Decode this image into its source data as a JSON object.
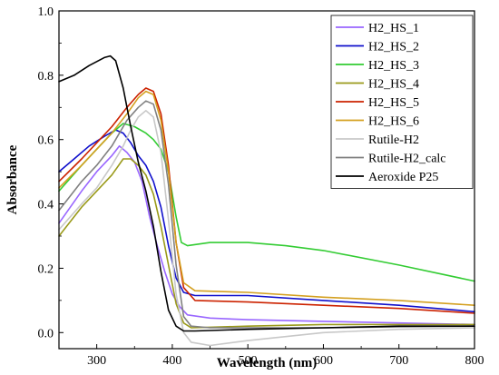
{
  "chart_data": {
    "type": "line",
    "title": "",
    "xlabel": "Wavelength (nm)",
    "ylabel": "Absorbance",
    "xlim": [
      250,
      800
    ],
    "ylim": [
      -0.05,
      1.0
    ],
    "xticks": [
      300,
      400,
      500,
      600,
      700,
      800
    ],
    "yticks": [
      0.0,
      0.2,
      0.4,
      0.6,
      0.8,
      1.0
    ],
    "xtick_labels": [
      "300",
      "400",
      "500",
      "600",
      "700",
      "800"
    ],
    "ytick_labels": [
      "0.0",
      "0.2",
      "0.4",
      "0.6",
      "0.8",
      "1.0"
    ],
    "grid": false,
    "legend_position": "top-right",
    "series": [
      {
        "name": "H2_HS_1",
        "color": "#9966ff",
        "points": [
          [
            250,
            0.34
          ],
          [
            280,
            0.44
          ],
          [
            300,
            0.5
          ],
          [
            320,
            0.55
          ],
          [
            330,
            0.58
          ],
          [
            340,
            0.56
          ],
          [
            350,
            0.53
          ],
          [
            360,
            0.47
          ],
          [
            370,
            0.36
          ],
          [
            380,
            0.27
          ],
          [
            390,
            0.19
          ],
          [
            400,
            0.12
          ],
          [
            410,
            0.08
          ],
          [
            420,
            0.055
          ],
          [
            450,
            0.045
          ],
          [
            500,
            0.04
          ],
          [
            600,
            0.035
          ],
          [
            700,
            0.03
          ],
          [
            800,
            0.025
          ]
        ]
      },
      {
        "name": "H2_HS_2",
        "color": "#1010cc",
        "points": [
          [
            250,
            0.5
          ],
          [
            270,
            0.54
          ],
          [
            290,
            0.58
          ],
          [
            310,
            0.61
          ],
          [
            325,
            0.63
          ],
          [
            335,
            0.62
          ],
          [
            345,
            0.59
          ],
          [
            355,
            0.55
          ],
          [
            365,
            0.52
          ],
          [
            375,
            0.47
          ],
          [
            385,
            0.39
          ],
          [
            395,
            0.27
          ],
          [
            405,
            0.17
          ],
          [
            415,
            0.125
          ],
          [
            430,
            0.115
          ],
          [
            500,
            0.115
          ],
          [
            600,
            0.1
          ],
          [
            700,
            0.085
          ],
          [
            800,
            0.065
          ]
        ]
      },
      {
        "name": "H2_HS_3",
        "color": "#33cc33",
        "points": [
          [
            250,
            0.44
          ],
          [
            280,
            0.52
          ],
          [
            300,
            0.57
          ],
          [
            320,
            0.62
          ],
          [
            335,
            0.65
          ],
          [
            350,
            0.64
          ],
          [
            365,
            0.62
          ],
          [
            375,
            0.6
          ],
          [
            385,
            0.57
          ],
          [
            395,
            0.5
          ],
          [
            405,
            0.36
          ],
          [
            412,
            0.28
          ],
          [
            420,
            0.27
          ],
          [
            450,
            0.28
          ],
          [
            500,
            0.28
          ],
          [
            550,
            0.27
          ],
          [
            600,
            0.255
          ],
          [
            700,
            0.21
          ],
          [
            800,
            0.16
          ]
        ]
      },
      {
        "name": "H2_HS_4",
        "color": "#9a9a1a",
        "points": [
          [
            250,
            0.3
          ],
          [
            280,
            0.39
          ],
          [
            300,
            0.44
          ],
          [
            320,
            0.49
          ],
          [
            335,
            0.54
          ],
          [
            345,
            0.54
          ],
          [
            355,
            0.52
          ],
          [
            365,
            0.49
          ],
          [
            375,
            0.43
          ],
          [
            385,
            0.33
          ],
          [
            395,
            0.21
          ],
          [
            405,
            0.09
          ],
          [
            415,
            0.03
          ],
          [
            425,
            0.015
          ],
          [
            500,
            0.02
          ],
          [
            600,
            0.025
          ],
          [
            700,
            0.025
          ],
          [
            800,
            0.025
          ]
        ]
      },
      {
        "name": "H2_HS_5",
        "color": "#cc2200",
        "points": [
          [
            250,
            0.47
          ],
          [
            280,
            0.54
          ],
          [
            300,
            0.59
          ],
          [
            320,
            0.64
          ],
          [
            340,
            0.7
          ],
          [
            355,
            0.74
          ],
          [
            365,
            0.76
          ],
          [
            375,
            0.75
          ],
          [
            385,
            0.68
          ],
          [
            395,
            0.52
          ],
          [
            405,
            0.28
          ],
          [
            415,
            0.14
          ],
          [
            430,
            0.1
          ],
          [
            500,
            0.095
          ],
          [
            600,
            0.085
          ],
          [
            700,
            0.075
          ],
          [
            800,
            0.06
          ]
        ]
      },
      {
        "name": "H2_HS_6",
        "color": "#d4a020",
        "points": [
          [
            250,
            0.45
          ],
          [
            280,
            0.52
          ],
          [
            300,
            0.57
          ],
          [
            320,
            0.62
          ],
          [
            340,
            0.68
          ],
          [
            355,
            0.73
          ],
          [
            365,
            0.75
          ],
          [
            375,
            0.74
          ],
          [
            385,
            0.66
          ],
          [
            395,
            0.5
          ],
          [
            405,
            0.28
          ],
          [
            415,
            0.155
          ],
          [
            430,
            0.13
          ],
          [
            500,
            0.125
          ],
          [
            600,
            0.11
          ],
          [
            700,
            0.1
          ],
          [
            800,
            0.085
          ]
        ]
      },
      {
        "name": "Rutile-H2",
        "color": "#c8c8c8",
        "points": [
          [
            250,
            0.32
          ],
          [
            280,
            0.4
          ],
          [
            300,
            0.45
          ],
          [
            320,
            0.52
          ],
          [
            335,
            0.58
          ],
          [
            345,
            0.63
          ],
          [
            355,
            0.67
          ],
          [
            365,
            0.69
          ],
          [
            375,
            0.67
          ],
          [
            385,
            0.56
          ],
          [
            395,
            0.35
          ],
          [
            405,
            0.12
          ],
          [
            415,
            0.0
          ],
          [
            425,
            -0.03
          ],
          [
            450,
            -0.04
          ],
          [
            500,
            -0.025
          ],
          [
            600,
            0.0
          ],
          [
            700,
            0.01
          ],
          [
            800,
            0.015
          ]
        ]
      },
      {
        "name": "Rutile-H2_calc",
        "color": "#808080",
        "points": [
          [
            250,
            0.38
          ],
          [
            280,
            0.47
          ],
          [
            300,
            0.52
          ],
          [
            320,
            0.58
          ],
          [
            340,
            0.66
          ],
          [
            355,
            0.7
          ],
          [
            365,
            0.72
          ],
          [
            375,
            0.71
          ],
          [
            385,
            0.63
          ],
          [
            395,
            0.46
          ],
          [
            405,
            0.21
          ],
          [
            415,
            0.05
          ],
          [
            425,
            0.02
          ],
          [
            450,
            0.015
          ],
          [
            500,
            0.015
          ],
          [
            600,
            0.015
          ],
          [
            700,
            0.018
          ],
          [
            800,
            0.02
          ]
        ]
      },
      {
        "name": "Aeroxide P25",
        "color": "#000000",
        "points": [
          [
            250,
            0.78
          ],
          [
            270,
            0.8
          ],
          [
            290,
            0.83
          ],
          [
            310,
            0.855
          ],
          [
            318,
            0.86
          ],
          [
            325,
            0.845
          ],
          [
            335,
            0.76
          ],
          [
            345,
            0.64
          ],
          [
            355,
            0.53
          ],
          [
            365,
            0.44
          ],
          [
            375,
            0.33
          ],
          [
            385,
            0.19
          ],
          [
            395,
            0.07
          ],
          [
            405,
            0.02
          ],
          [
            415,
            0.005
          ],
          [
            430,
            0.005
          ],
          [
            500,
            0.01
          ],
          [
            600,
            0.015
          ],
          [
            700,
            0.02
          ],
          [
            800,
            0.02
          ]
        ]
      }
    ]
  }
}
